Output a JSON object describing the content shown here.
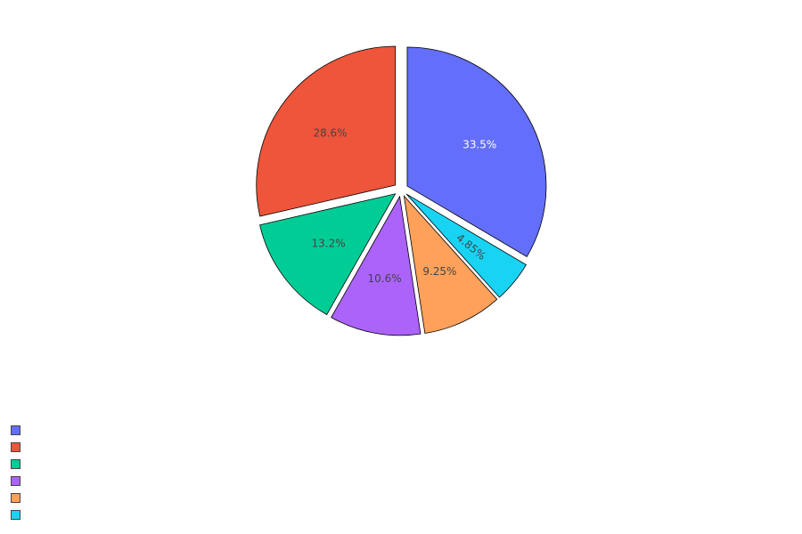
{
  "chart_data": {
    "type": "pie",
    "slices": [
      {
        "value": 33.5,
        "label": "33.5%",
        "color": "#636efa",
        "label_color": "#ffffff"
      },
      {
        "value": 4.85,
        "label": "4.85%",
        "color": "#19d3f3",
        "label_color": "#444444"
      },
      {
        "value": 9.25,
        "label": "9.25%",
        "color": "#ffa15a",
        "label_color": "#444444"
      },
      {
        "value": 10.6,
        "label": "10.6%",
        "color": "#ab63fa",
        "label_color": "#444444"
      },
      {
        "value": 13.2,
        "label": "13.2%",
        "color": "#00cc96",
        "label_color": "#444444"
      },
      {
        "value": 28.6,
        "label": "28.6%",
        "color": "#ef553b",
        "label_color": "#444444"
      }
    ],
    "direction": "clockwise",
    "start": "top",
    "pulled_out": true,
    "slice_outline_color": "#000000",
    "legend": {
      "placement": "bottom-left",
      "entries": [
        {
          "color": "#636efa"
        },
        {
          "color": "#ef553b"
        },
        {
          "color": "#00cc96"
        },
        {
          "color": "#ab63fa"
        },
        {
          "color": "#ffa15a"
        },
        {
          "color": "#19d3f3"
        }
      ]
    }
  }
}
